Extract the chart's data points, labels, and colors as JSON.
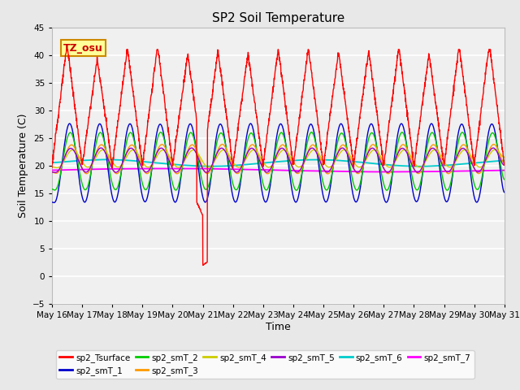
{
  "title": "SP2 Soil Temperature",
  "xlabel": "Time",
  "ylabel": "Soil Temperature (C)",
  "ylim": [
    -5,
    45
  ],
  "xlim_days": [
    16,
    31
  ],
  "xtick_labels": [
    "May 16",
    "May 17",
    "May 18",
    "May 19",
    "May 20",
    "May 21",
    "May 22",
    "May 23",
    "May 24",
    "May 25",
    "May 26",
    "May 27",
    "May 28",
    "May 29",
    "May 30",
    "May 31"
  ],
  "series_colors": {
    "sp2_Tsurface": "#ff0000",
    "sp2_smT_1": "#0000cc",
    "sp2_smT_2": "#00cc00",
    "sp2_smT_3": "#ff9900",
    "sp2_smT_4": "#cccc00",
    "sp2_smT_5": "#9900cc",
    "sp2_smT_6": "#00cccc",
    "sp2_smT_7": "#ff00ff"
  },
  "annotation_text": "TZ_osu",
  "annotation_color": "#cc0000",
  "annotation_bg": "#ffff99",
  "annotation_border": "#cc8800",
  "background_color": "#e8e8e8",
  "plot_bg_color": "#f0f0f0",
  "grid_color": "#ffffff",
  "title_fontsize": 11,
  "label_fontsize": 9,
  "tick_fontsize": 7.5
}
